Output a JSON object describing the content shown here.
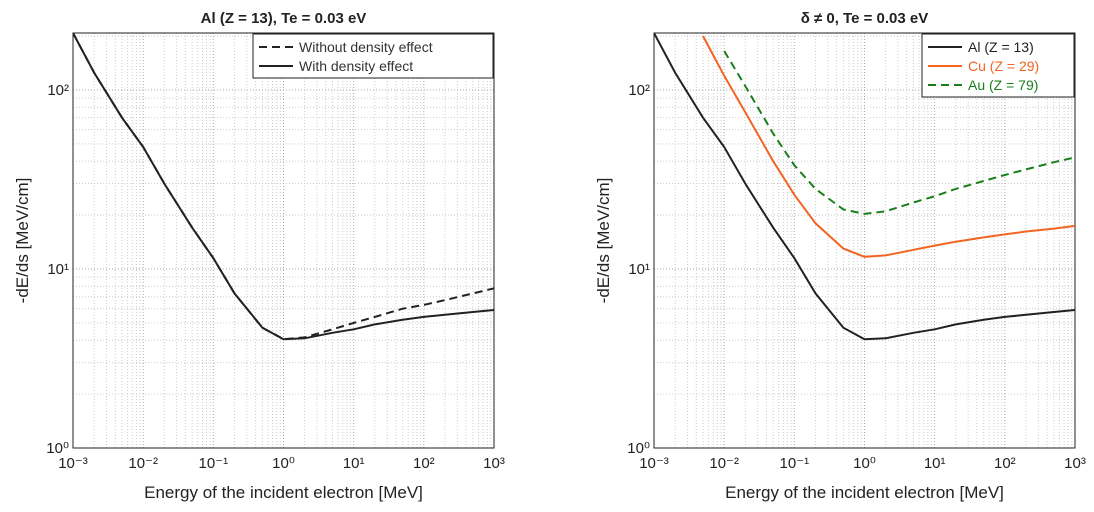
{
  "chart_data": [
    {
      "type": "line",
      "title": "Al (Z = 13), Te = 0.03 eV",
      "x_label": "Energy of the incident electron [MeV]",
      "y_label": "-dE/ds [MeV/cm]",
      "log_x": true,
      "log_y": true,
      "grid": true,
      "legend": "upper right",
      "xlim": [
        0.001,
        1000
      ],
      "ylim": [
        1,
        208
      ],
      "xticks": [
        {
          "value": 0.001,
          "label": "10⁻³"
        },
        {
          "value": 0.01,
          "label": "10⁻²"
        },
        {
          "value": 0.1,
          "label": "10⁻¹"
        },
        {
          "value": 1,
          "label": "10⁰"
        },
        {
          "value": 10,
          "label": "10¹"
        },
        {
          "value": 100,
          "label": "10²"
        },
        {
          "value": 1000,
          "label": "10³"
        }
      ],
      "yticks": [
        {
          "value": 1,
          "label": "10⁰"
        },
        {
          "value": 10,
          "label": "10¹"
        },
        {
          "value": 100,
          "label": "10²"
        }
      ],
      "x": [
        0.001,
        0.002,
        0.005,
        0.01,
        0.02,
        0.05,
        0.1,
        0.2,
        0.5,
        1,
        2,
        5,
        10,
        20,
        50,
        100,
        200,
        500,
        1000
      ],
      "series": [
        {
          "name": "Without density effect",
          "color": "#222222",
          "dashed": true,
          "values": [
            208,
            125,
            70,
            48,
            30,
            17,
            11.5,
            7.3,
            4.7,
            4.05,
            4.15,
            4.6,
            5.0,
            5.4,
            6.0,
            6.3,
            6.7,
            7.3,
            7.8
          ]
        },
        {
          "name": "With density effect",
          "color": "#222222",
          "dashed": false,
          "values": [
            208,
            125,
            70,
            48,
            30,
            17,
            11.5,
            7.3,
            4.7,
            4.05,
            4.1,
            4.4,
            4.6,
            4.9,
            5.2,
            5.4,
            5.55,
            5.75,
            5.9
          ]
        }
      ]
    },
    {
      "type": "line",
      "title": "δ ≠ 0, Te = 0.03 eV",
      "x_label": "Energy of the incident electron [MeV]",
      "y_label": "-dE/ds [MeV/cm]",
      "log_x": true,
      "log_y": true,
      "grid": true,
      "legend": "upper right",
      "xlim": [
        0.001,
        1000
      ],
      "ylim": [
        1,
        208
      ],
      "xticks": [
        {
          "value": 0.001,
          "label": "10⁻³"
        },
        {
          "value": 0.01,
          "label": "10⁻²"
        },
        {
          "value": 0.1,
          "label": "10⁻¹"
        },
        {
          "value": 1,
          "label": "10⁰"
        },
        {
          "value": 10,
          "label": "10¹"
        },
        {
          "value": 100,
          "label": "10²"
        },
        {
          "value": 1000,
          "label": "10³"
        }
      ],
      "yticks": [
        {
          "value": 1,
          "label": "10⁰"
        },
        {
          "value": 10,
          "label": "10¹"
        },
        {
          "value": 100,
          "label": "10²"
        }
      ],
      "x": [
        0.001,
        0.002,
        0.005,
        0.01,
        0.02,
        0.05,
        0.1,
        0.2,
        0.5,
        1,
        2,
        5,
        10,
        20,
        50,
        100,
        200,
        500,
        1000
      ],
      "series": [
        {
          "name": "Al (Z = 13)",
          "color": "#222222",
          "dashed": false,
          "values": [
            208,
            125,
            70,
            48,
            30,
            17,
            11.5,
            7.3,
            4.7,
            4.05,
            4.1,
            4.4,
            4.6,
            4.9,
            5.2,
            5.4,
            5.55,
            5.75,
            5.9
          ]
        },
        {
          "name": "Cu (Z = 29)",
          "color": "#f26522",
          "dashed": false,
          "values": [
            null,
            null,
            200,
            120,
            75,
            40,
            26,
            18,
            13,
            11.7,
            11.9,
            12.8,
            13.5,
            14.2,
            15,
            15.6,
            16.2,
            16.8,
            17.4
          ]
        },
        {
          "name": "Au (Z = 79)",
          "color": "#1a7f1a",
          "dashed": true,
          "values": [
            null,
            null,
            null,
            165,
            105,
            57,
            38,
            28,
            21.5,
            20.3,
            21,
            23.5,
            25.5,
            28,
            31,
            33.5,
            36,
            39.5,
            42
          ]
        }
      ]
    }
  ]
}
